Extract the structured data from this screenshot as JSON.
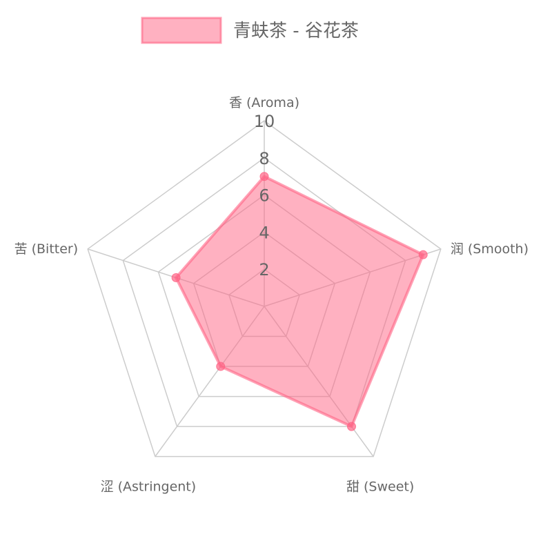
{
  "chart_data": {
    "type": "radar",
    "categories": [
      "香 (Aroma)",
      "润 (Smooth)",
      "甜 (Sweet)",
      "涩 (Astringent)",
      "苦 (Bitter)"
    ],
    "series": [
      {
        "name": "青蚨茶 - 谷花茶",
        "values": [
          7,
          9,
          8,
          4,
          5
        ],
        "color": "#ff6384"
      }
    ],
    "rlim": [
      0,
      10
    ],
    "ticks": [
      "2",
      "4",
      "6",
      "8",
      "10"
    ],
    "tick_values": [
      2,
      4,
      6,
      8,
      10
    ],
    "grid": true,
    "legend": "top"
  }
}
